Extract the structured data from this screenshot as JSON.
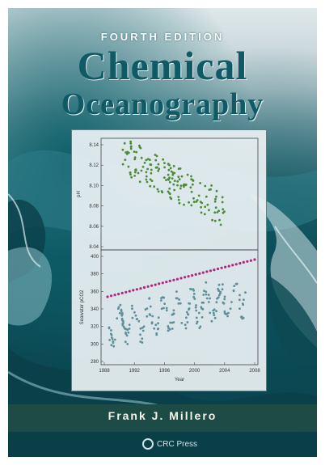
{
  "cover": {
    "edition": "FOURTH EDITION",
    "title_line1": "Chemical",
    "title_line2": "Oceanography",
    "author": "Frank J. Millero",
    "publisher_mark": "CRC Press",
    "colors": {
      "title": "#0f5a64",
      "author_bar": "#1d4b45",
      "trend_line": "#b0287c"
    }
  },
  "chart_data": {
    "type": "scatter",
    "panels": [
      {
        "name": "pH",
        "ylabel": "pH",
        "tick_labels": [
          "8.14",
          "8.12",
          "8.10",
          "8.08",
          "8.06",
          "8.04"
        ]
      },
      {
        "name": "pCO2",
        "ylabel": "Seawater pCO2",
        "tick_labels": [
          "400",
          "380",
          "360",
          "340",
          "320",
          "300",
          "280"
        ]
      }
    ],
    "xlabel": "Year",
    "x_ticks": [
      "1988",
      "1992",
      "1996",
      "2000",
      "2004",
      "2008"
    ]
  }
}
